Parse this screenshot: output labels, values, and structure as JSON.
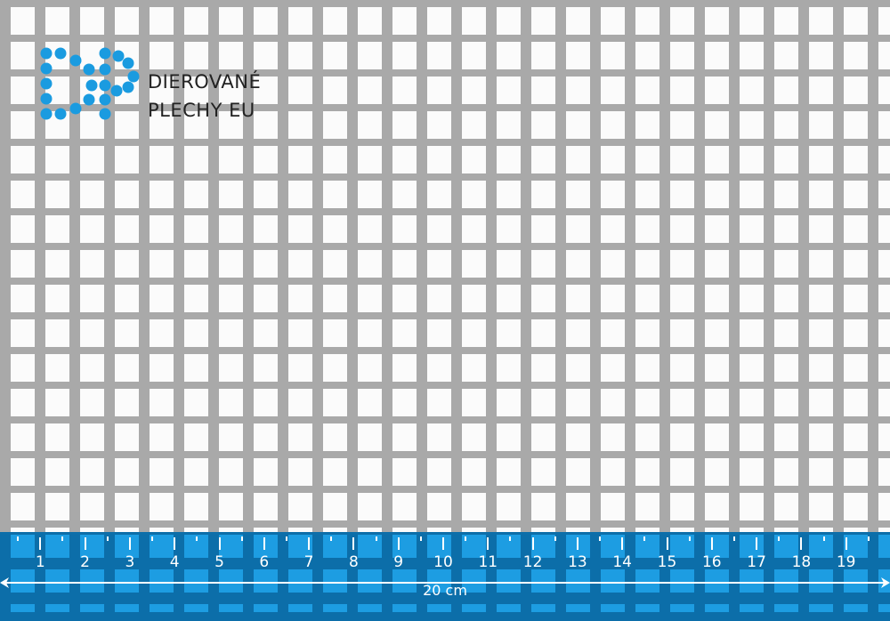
{
  "logo": {
    "initials": "DP",
    "line1": "DIEROVANÉ",
    "line2": "PLECHY EU",
    "color": "#1a9be0"
  },
  "ruler": {
    "labels": [
      "1",
      "2",
      "3",
      "4",
      "5",
      "6",
      "7",
      "8",
      "9",
      "10",
      "11",
      "12",
      "13",
      "14",
      "15",
      "16",
      "17",
      "18",
      "19"
    ],
    "total_label": "20 cm",
    "band_color": "#1d9de2"
  },
  "sheet": {
    "metal_color": "#a9a9a9",
    "hole_shape": "square"
  }
}
